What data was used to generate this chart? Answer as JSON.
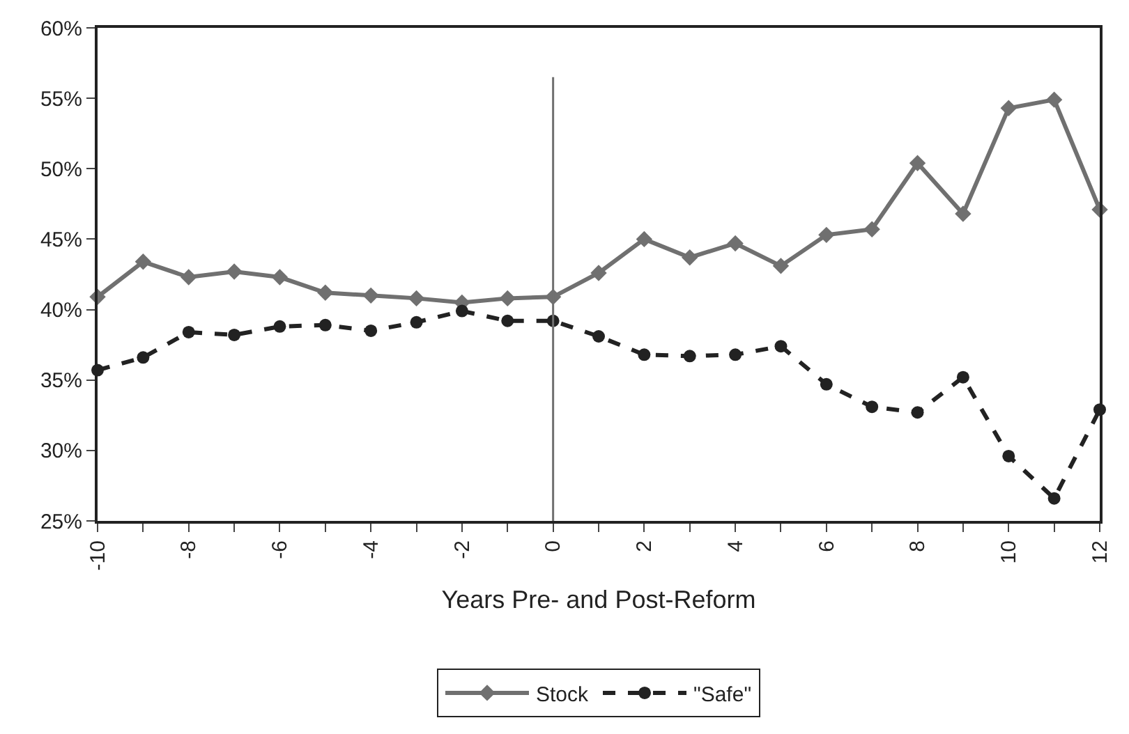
{
  "chart_data": {
    "type": "line",
    "xlabel": "Years Pre- and Post-Reform",
    "x": [
      -10,
      -9,
      -8,
      -7,
      -6,
      -5,
      -4,
      -3,
      -2,
      -1,
      0,
      1,
      2,
      3,
      4,
      5,
      6,
      7,
      8,
      9,
      10,
      11,
      12
    ],
    "series": [
      {
        "name": "Stock",
        "color": "#707070",
        "marker": "diamond",
        "line_style": "solid",
        "values": [
          40.9,
          43.4,
          42.3,
          42.7,
          42.3,
          41.2,
          41.0,
          40.8,
          40.5,
          40.8,
          40.9,
          42.6,
          45.0,
          43.7,
          44.7,
          43.1,
          45.3,
          45.7,
          50.4,
          46.8,
          54.3,
          54.9,
          47.1
        ]
      },
      {
        "name": "\"Safe\"",
        "color": "#222222",
        "marker": "circle",
        "line_style": "dashed",
        "values": [
          35.7,
          36.6,
          38.4,
          38.2,
          38.8,
          38.9,
          38.5,
          39.1,
          39.9,
          39.2,
          39.2,
          38.1,
          36.8,
          36.7,
          36.8,
          37.4,
          34.7,
          33.1,
          32.7,
          35.2,
          29.6,
          26.6,
          32.9
        ]
      }
    ],
    "xlim": [
      -10,
      12
    ],
    "xticks": [
      -10,
      {
        "value": -9,
        "label": null
      },
      -8,
      {
        "value": -7,
        "label": null
      },
      -6,
      {
        "value": -5,
        "label": null
      },
      -4,
      {
        "value": -3,
        "label": null
      },
      -2,
      {
        "value": -1,
        "label": null
      },
      0,
      {
        "value": 1,
        "label": null
      },
      2,
      {
        "value": 3,
        "label": null
      },
      4,
      {
        "value": 5,
        "label": null
      },
      6,
      {
        "value": 7,
        "label": null
      },
      8,
      {
        "value": 9,
        "label": null
      },
      10,
      {
        "value": 11,
        "label": null
      },
      12
    ],
    "ylim": [
      25,
      60
    ],
    "yticks": [
      {
        "value": 25,
        "label": "25%"
      },
      {
        "value": 30,
        "label": "30%"
      },
      {
        "value": 35,
        "label": "35%"
      },
      {
        "value": 40,
        "label": "40%"
      },
      {
        "value": 45,
        "label": "45%"
      },
      {
        "value": 50,
        "label": "50%"
      },
      {
        "value": 55,
        "label": "55%"
      },
      {
        "value": 60,
        "label": "60%"
      }
    ],
    "ref_lines": [
      {
        "axis": "x",
        "value": 0,
        "color": "#707070"
      }
    ],
    "legend": "bottom"
  }
}
